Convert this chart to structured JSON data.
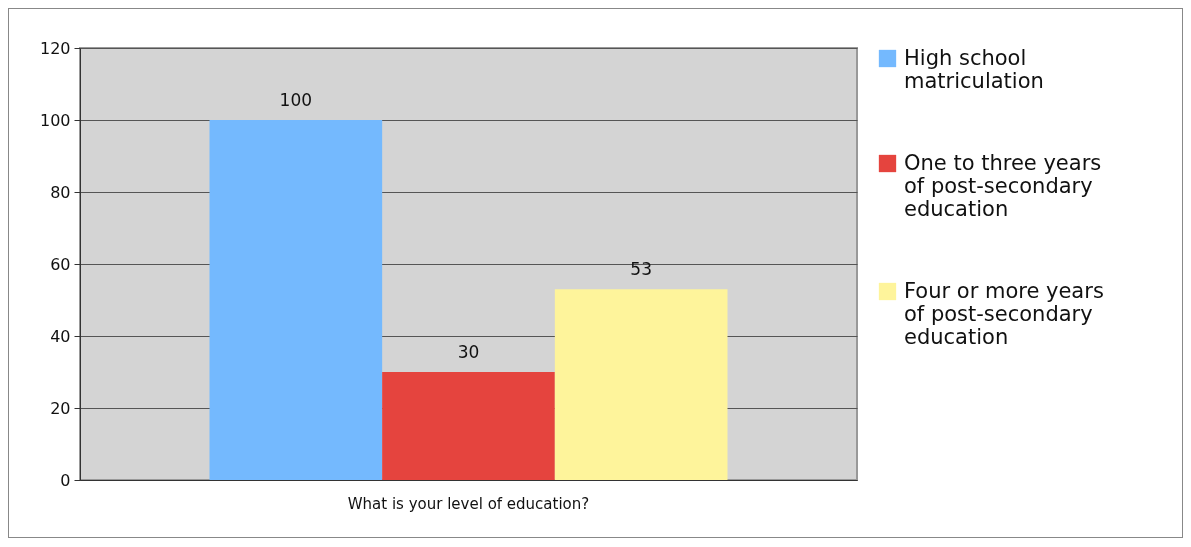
{
  "chart_data": {
    "type": "bar",
    "categories": [
      "What is your level of education?"
    ],
    "series": [
      {
        "name": "High school matriculation",
        "color": "#74b9fe",
        "values": [
          100
        ]
      },
      {
        "name": "One to three years of post-secondary education",
        "color": "#e5443e",
        "values": [
          30
        ]
      },
      {
        "name": "Four or more years of post-secondary education",
        "color": "#fef49b",
        "values": [
          53
        ]
      }
    ],
    "ylim": [
      0,
      120
    ],
    "yticks": [
      0,
      20,
      40,
      60,
      80,
      100,
      120
    ],
    "grid": "y",
    "legend": "right",
    "data_labels": true
  }
}
